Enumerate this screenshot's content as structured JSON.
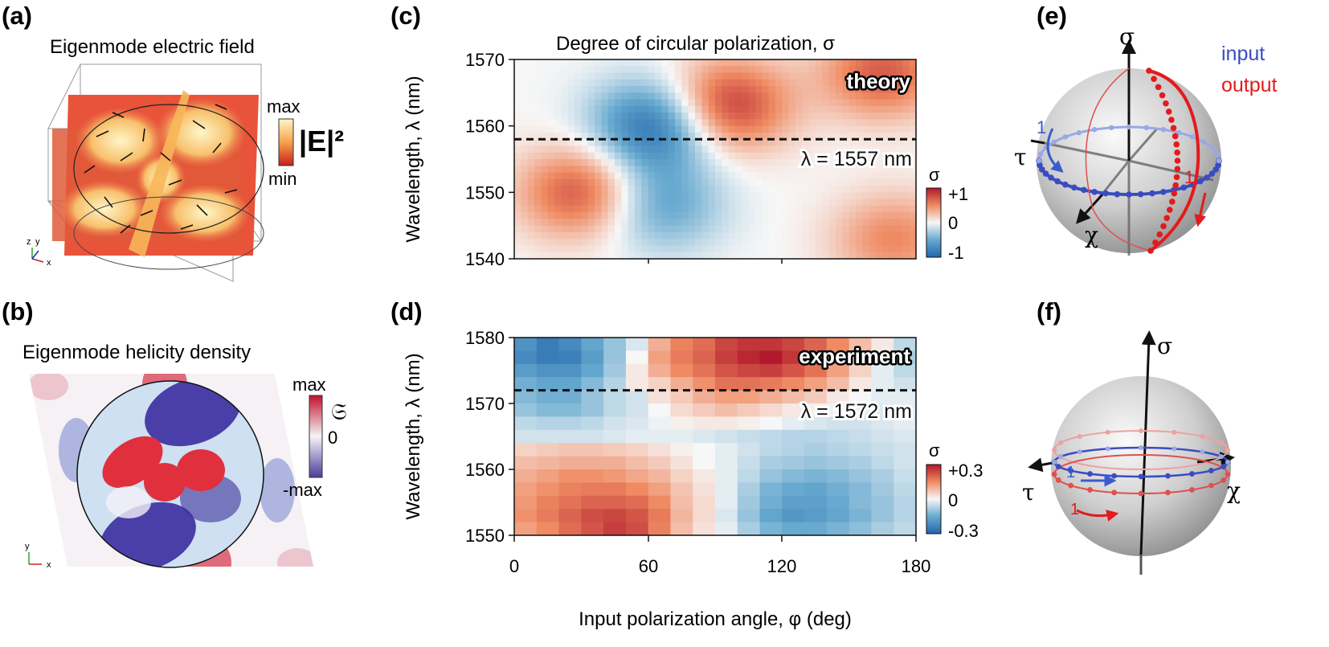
{
  "panels": {
    "a": {
      "label": "(a)",
      "title": "Eigenmode electric field",
      "legend_max": "max",
      "legend_min": "min",
      "legend_symbol": "|E|²",
      "axes": [
        "z",
        "y",
        "x"
      ]
    },
    "b": {
      "label": "(b)",
      "title": "Eigenmode helicity density",
      "legend_max": "max",
      "legend_zero": "0",
      "legend_min": "-max",
      "legend_symbol": "𝔖",
      "axes": [
        "y",
        "x"
      ]
    },
    "c": {
      "label": "(c)",
      "title": "Degree of circular polarization, σ",
      "annotation": "theory",
      "line_label": "λ = 1557 nm",
      "colorbar_title": "σ",
      "colorbar_ticks": [
        "+1",
        "0",
        "-1"
      ]
    },
    "d": {
      "label": "(d)",
      "annotation": "experiment",
      "line_label": "λ = 1572 nm",
      "colorbar_title": "σ",
      "colorbar_ticks": [
        "+0.3",
        "0",
        "-0.3"
      ]
    },
    "e": {
      "label": "(e)",
      "axis_sigma": "σ",
      "axis_tau": "τ",
      "axis_chi": "χ",
      "legend_input": "input",
      "legend_output": "output",
      "marker_input": "1",
      "marker_output": "1"
    },
    "f": {
      "label": "(f)",
      "axis_sigma": "σ",
      "axis_tau": "τ",
      "axis_chi": "χ",
      "marker_input": "1",
      "marker_output": "1"
    }
  },
  "shared_axes": {
    "xlabel": "Input polarization angle, φ (deg)",
    "ylabel": "Wavelength, λ (nm)",
    "xticks": [
      "0",
      "60",
      "120",
      "180"
    ]
  },
  "colors": {
    "red": "#b2182b",
    "blue": "#2166ac",
    "input": "#3b4cc0",
    "output": "#e41a1c"
  },
  "chart_data": [
    {
      "type": "heatmap",
      "id": "theory",
      "title": "Degree of circular polarization, σ",
      "xlabel": "Input polarization angle, φ (deg)",
      "ylabel": "Wavelength, λ (nm)",
      "xlim": [
        0,
        180
      ],
      "ylim": [
        1540,
        1570
      ],
      "yticks": [
        "1570",
        "1560",
        "1550",
        "1540"
      ],
      "clim": [
        -1,
        1
      ],
      "reference_line_nm": 1557,
      "features": [
        {
          "phi": 63,
          "lambda": 1560,
          "sign": -1,
          "amp": 0.95
        },
        {
          "phi": 95,
          "lambda": 1563,
          "sign": 1,
          "amp": 0.9
        },
        {
          "phi": 30,
          "lambda": 1550,
          "sign": 1,
          "amp": 0.75
        },
        {
          "phi": 65,
          "lambda": 1548,
          "sign": -1,
          "amp": 0.55
        },
        {
          "phi": 165,
          "lambda": 1568,
          "sign": 1,
          "amp": 0.7
        },
        {
          "phi": 170,
          "lambda": 1543,
          "sign": 1,
          "amp": 0.5
        }
      ]
    },
    {
      "type": "heatmap",
      "id": "experiment",
      "xlabel": "Input polarization angle, φ (deg)",
      "ylabel": "Wavelength, λ (nm)",
      "xlim": [
        0,
        180
      ],
      "ylim": [
        1550,
        1580
      ],
      "yticks": [
        "1580",
        "1570",
        "1560",
        "1550"
      ],
      "clim": [
        -0.3,
        0.3
      ],
      "reference_line_nm": 1572,
      "grid": {
        "phi": [
          0,
          10,
          20,
          30,
          40,
          50,
          60,
          70,
          80,
          90,
          100,
          110,
          120,
          130,
          140,
          150,
          160,
          170
        ],
        "lambda": [
          1579,
          1577,
          1575,
          1573,
          1571,
          1569,
          1567,
          1565,
          1563,
          1561,
          1559,
          1557,
          1555,
          1553,
          1551
        ],
        "sigma": [
          [
            -0.2,
            -0.25,
            -0.22,
            -0.16,
            -0.1,
            -0.03,
            0.1,
            0.16,
            0.19,
            0.24,
            0.26,
            0.26,
            0.24,
            0.2,
            0.15,
            0.08,
            0.02,
            -0.06
          ],
          [
            -0.22,
            -0.25,
            -0.24,
            -0.18,
            -0.1,
            0.0,
            0.12,
            0.17,
            0.2,
            0.25,
            0.28,
            0.3,
            0.26,
            0.21,
            0.14,
            0.07,
            0.0,
            -0.08
          ],
          [
            -0.18,
            -0.2,
            -0.2,
            -0.16,
            -0.09,
            0.02,
            0.1,
            0.15,
            0.18,
            0.22,
            0.24,
            0.25,
            0.22,
            0.18,
            0.12,
            0.05,
            -0.02,
            -0.06
          ],
          [
            -0.14,
            -0.16,
            -0.16,
            -0.12,
            -0.07,
            0.02,
            0.05,
            0.1,
            0.14,
            0.18,
            0.18,
            0.17,
            0.15,
            0.12,
            0.08,
            0.02,
            -0.02,
            -0.04
          ],
          [
            -0.12,
            -0.14,
            -0.14,
            -0.1,
            -0.06,
            -0.04,
            0.03,
            0.06,
            0.1,
            0.12,
            0.12,
            0.1,
            0.08,
            0.06,
            0.02,
            0.0,
            -0.02,
            -0.02
          ],
          [
            -0.1,
            -0.12,
            -0.12,
            -0.1,
            -0.06,
            -0.04,
            0.0,
            0.04,
            0.06,
            0.08,
            0.06,
            0.04,
            0.02,
            0.01,
            -0.01,
            -0.02,
            -0.03,
            -0.02
          ],
          [
            -0.06,
            -0.07,
            -0.07,
            -0.06,
            -0.04,
            -0.03,
            -0.01,
            0.01,
            0.02,
            0.02,
            0.01,
            0.0,
            -0.02,
            -0.03,
            -0.04,
            -0.04,
            -0.03,
            -0.02
          ],
          [
            -0.04,
            -0.04,
            -0.04,
            -0.04,
            -0.03,
            -0.02,
            -0.02,
            -0.02,
            -0.03,
            -0.04,
            -0.05,
            -0.06,
            -0.07,
            -0.07,
            -0.06,
            -0.05,
            -0.04,
            -0.03
          ],
          [
            0.05,
            0.06,
            0.07,
            0.07,
            0.06,
            0.05,
            0.03,
            0.01,
            0.0,
            -0.02,
            -0.04,
            -0.06,
            -0.07,
            -0.08,
            -0.07,
            -0.06,
            -0.05,
            -0.04
          ],
          [
            0.08,
            0.09,
            0.1,
            0.1,
            0.1,
            0.08,
            0.06,
            0.03,
            0.0,
            -0.02,
            -0.05,
            -0.08,
            -0.09,
            -0.1,
            -0.09,
            -0.08,
            -0.06,
            -0.04
          ],
          [
            0.1,
            0.12,
            0.14,
            0.14,
            0.13,
            0.11,
            0.09,
            0.05,
            0.02,
            -0.02,
            -0.06,
            -0.1,
            -0.12,
            -0.13,
            -0.12,
            -0.1,
            -0.08,
            -0.05
          ],
          [
            0.12,
            0.14,
            0.16,
            0.17,
            0.17,
            0.15,
            0.12,
            0.07,
            0.03,
            -0.02,
            -0.08,
            -0.13,
            -0.15,
            -0.16,
            -0.14,
            -0.12,
            -0.09,
            -0.06
          ],
          [
            0.13,
            0.16,
            0.18,
            0.2,
            0.2,
            0.19,
            0.15,
            0.08,
            0.04,
            -0.02,
            -0.09,
            -0.14,
            -0.17,
            -0.17,
            -0.15,
            -0.12,
            -0.1,
            -0.07
          ],
          [
            0.14,
            0.17,
            0.2,
            0.23,
            0.24,
            0.22,
            0.17,
            0.09,
            0.04,
            -0.03,
            -0.1,
            -0.16,
            -0.19,
            -0.18,
            -0.16,
            -0.13,
            -0.1,
            -0.07
          ],
          [
            0.12,
            0.15,
            0.19,
            0.22,
            0.25,
            0.23,
            0.16,
            0.08,
            0.03,
            -0.02,
            -0.08,
            -0.13,
            -0.15,
            -0.15,
            -0.13,
            -0.11,
            -0.08,
            -0.06
          ]
        ]
      }
    }
  ]
}
